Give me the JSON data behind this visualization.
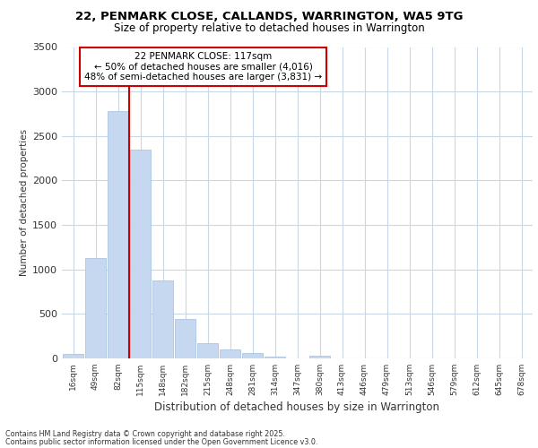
{
  "title": "22, PENMARK CLOSE, CALLANDS, WARRINGTON, WA5 9TG",
  "subtitle": "Size of property relative to detached houses in Warrington",
  "xlabel": "Distribution of detached houses by size in Warrington",
  "ylabel": "Number of detached properties",
  "footnote1": "Contains HM Land Registry data © Crown copyright and database right 2025.",
  "footnote2": "Contains public sector information licensed under the Open Government Licence v3.0.",
  "annotation_title": "22 PENMARK CLOSE: 117sqm",
  "annotation_line1": "← 50% of detached houses are smaller (4,016)",
  "annotation_line2": "48% of semi-detached houses are larger (3,831) →",
  "bar_color": "#c5d8f0",
  "bar_edge_color": "#a0bedd",
  "vline_color": "#cc0000",
  "bg_color": "#ffffff",
  "grid_color": "#c8d8e8",
  "categories": [
    "16sqm",
    "49sqm",
    "82sqm",
    "115sqm",
    "148sqm",
    "182sqm",
    "215sqm",
    "248sqm",
    "281sqm",
    "314sqm",
    "347sqm",
    "380sqm",
    "413sqm",
    "446sqm",
    "479sqm",
    "513sqm",
    "546sqm",
    "579sqm",
    "612sqm",
    "645sqm",
    "678sqm"
  ],
  "values": [
    50,
    1130,
    2780,
    2350,
    880,
    440,
    175,
    100,
    65,
    25,
    5,
    30,
    5,
    0,
    0,
    0,
    0,
    0,
    0,
    0,
    0
  ],
  "vline_position": 3.0,
  "ylim_max": 3500,
  "yticks": [
    0,
    500,
    1000,
    1500,
    2000,
    2500,
    3000,
    3500
  ]
}
